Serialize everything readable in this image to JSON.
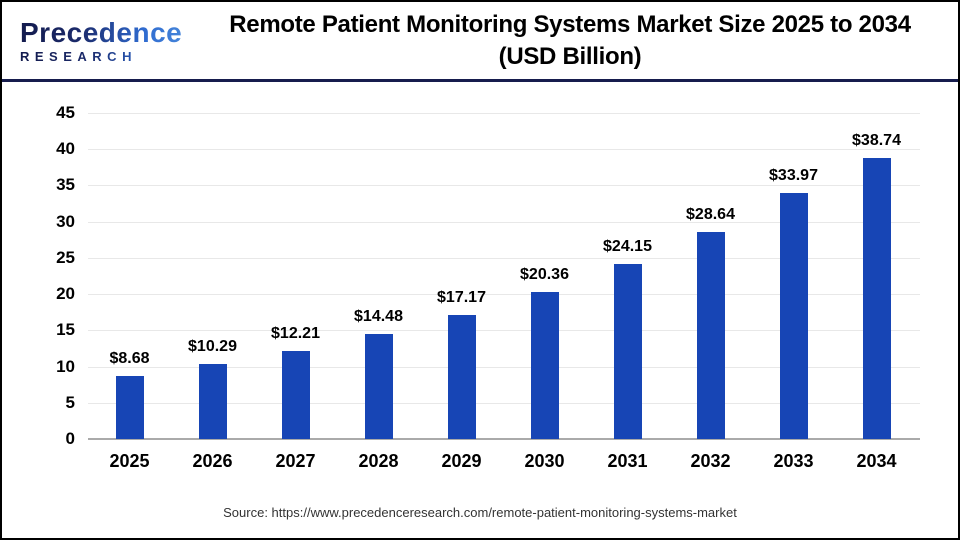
{
  "header": {
    "logo": {
      "line1": "Precedence",
      "line2": "RESEARCH"
    },
    "title_line1": "Remote Patient Monitoring Systems Market Size 2025 to 2034",
    "title_line2": "(USD Billion)"
  },
  "chart_data": {
    "type": "bar",
    "title": "Remote Patient Monitoring Systems Market Size 2025 to 2034 (USD Billion)",
    "categories": [
      "2025",
      "2026",
      "2027",
      "2028",
      "2029",
      "2030",
      "2031",
      "2032",
      "2033",
      "2034"
    ],
    "values": [
      8.68,
      10.29,
      12.21,
      14.48,
      17.17,
      20.36,
      24.15,
      28.64,
      33.97,
      38.74
    ],
    "value_labels": [
      "$8.68",
      "$10.29",
      "$12.21",
      "$14.48",
      "$17.17",
      "$20.36",
      "$24.15",
      "$28.64",
      "$33.97",
      "$38.74"
    ],
    "xlabel": "",
    "ylabel": "",
    "ylim": [
      0,
      45
    ],
    "ytick_step": 5,
    "grid": true,
    "legend": false,
    "bar_color": "#1745b5",
    "gridline_color": "#e8e8e8",
    "axis_color": "#aaaaaa"
  },
  "footer": {
    "source": "Source: https://www.precedenceresearch.com/remote-patient-monitoring-systems-market"
  }
}
